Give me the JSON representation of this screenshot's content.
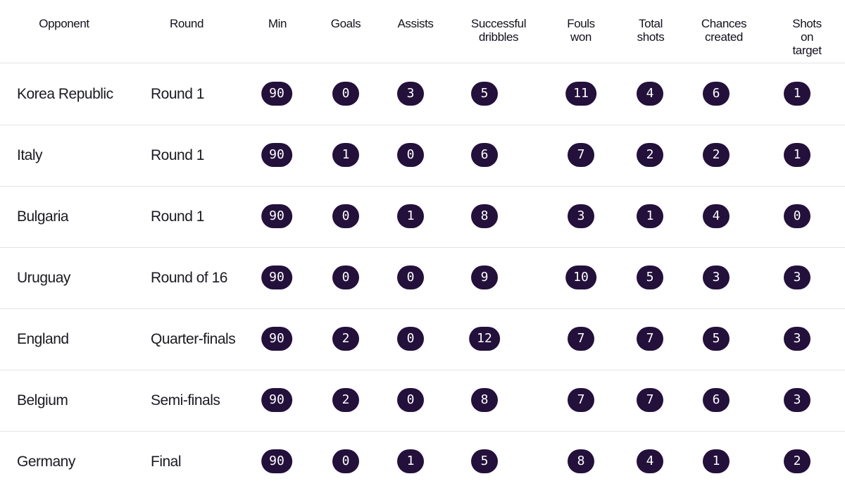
{
  "table": {
    "columns": [
      "Opponent",
      "Round",
      "Min",
      "Goals",
      "Assists",
      "Successful\ndribbles",
      "Fouls\nwon",
      "Total\nshots",
      "Chances\ncreated",
      "Shots\non target"
    ],
    "rows": [
      {
        "opponent": "Korea Republic",
        "round": "Round 1",
        "stats": [
          "90",
          "0",
          "3",
          "5",
          "11",
          "4",
          "6",
          "1"
        ]
      },
      {
        "opponent": "Italy",
        "round": "Round 1",
        "stats": [
          "90",
          "1",
          "0",
          "6",
          "7",
          "2",
          "2",
          "1"
        ]
      },
      {
        "opponent": "Bulgaria",
        "round": "Round 1",
        "stats": [
          "90",
          "0",
          "1",
          "8",
          "3",
          "1",
          "4",
          "0"
        ]
      },
      {
        "opponent": "Uruguay",
        "round": "Round of 16",
        "stats": [
          "90",
          "0",
          "0",
          "9",
          "10",
          "5",
          "3",
          "3"
        ]
      },
      {
        "opponent": "England",
        "round": "Quarter-finals",
        "stats": [
          "90",
          "2",
          "0",
          "12",
          "7",
          "7",
          "5",
          "3"
        ]
      },
      {
        "opponent": "Belgium",
        "round": "Semi-finals",
        "stats": [
          "90",
          "2",
          "0",
          "8",
          "7",
          "7",
          "6",
          "3"
        ]
      },
      {
        "opponent": "Germany",
        "round": "Final",
        "stats": [
          "90",
          "0",
          "1",
          "5",
          "8",
          "4",
          "1",
          "2"
        ]
      }
    ]
  },
  "colors": {
    "pill_background": "#23103b",
    "pill_text": "#ffffff",
    "divider": "#e4e4e8"
  }
}
